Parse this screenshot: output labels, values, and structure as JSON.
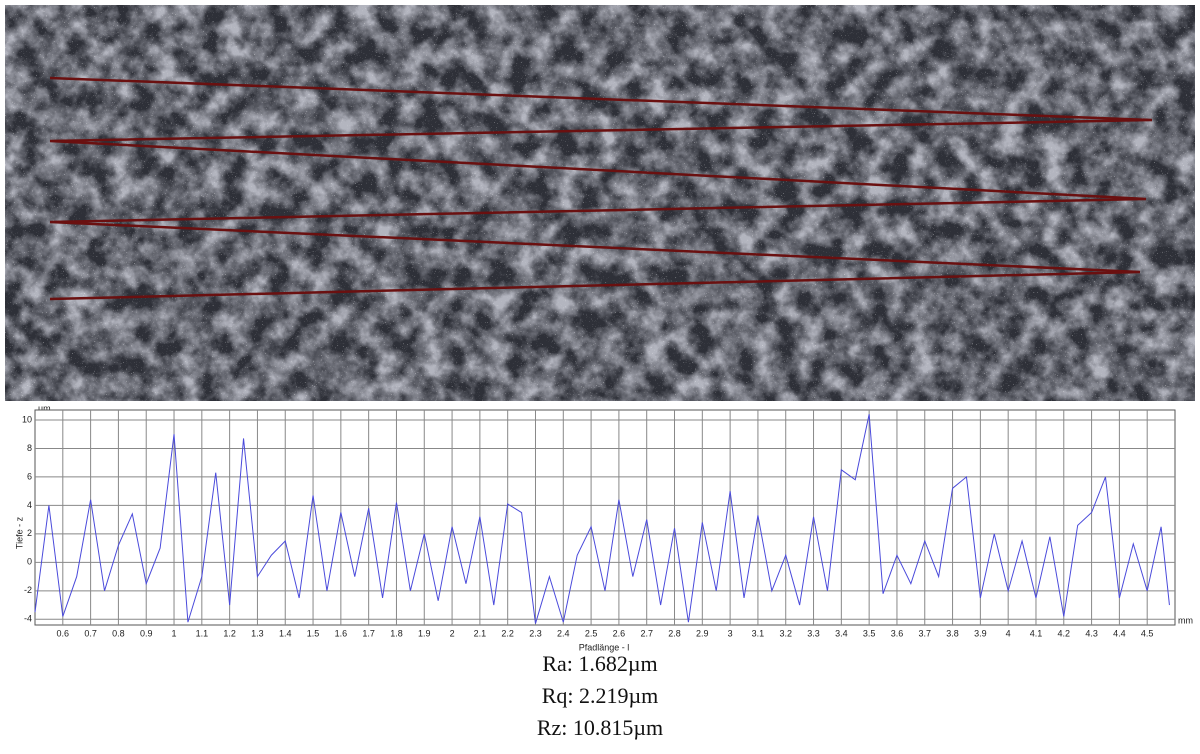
{
  "chart_data": {
    "type": "line",
    "y_unit": "µm",
    "x_unit": "mm",
    "y_label": "Tiefe - z",
    "x_label": "Pfadlänge - l",
    "xlim": [
      0.5,
      4.6
    ],
    "ylim": [
      -4.4,
      10.7
    ],
    "xticks": [
      0.6,
      0.7,
      0.8,
      0.9,
      1,
      1.1,
      1.2,
      1.3,
      1.4,
      1.5,
      1.6,
      1.7,
      1.8,
      1.9,
      2,
      2.1,
      2.2,
      2.3,
      2.4,
      2.5,
      2.6,
      2.7,
      2.8,
      2.9,
      3,
      3.1,
      3.2,
      3.3,
      3.4,
      3.5,
      3.6,
      3.7,
      3.8,
      3.9,
      4,
      4.1,
      4.2,
      4.3,
      4.4,
      4.5
    ],
    "yticks": [
      -4,
      -2,
      0,
      2,
      4,
      6,
      8,
      10
    ],
    "grid": true,
    "x": [
      0.5,
      0.55,
      0.6,
      0.65,
      0.7,
      0.75,
      0.8,
      0.85,
      0.9,
      0.95,
      1,
      1.05,
      1.1,
      1.15,
      1.2,
      1.25,
      1.3,
      1.35,
      1.4,
      1.45,
      1.5,
      1.55,
      1.6,
      1.65,
      1.7,
      1.75,
      1.8,
      1.85,
      1.9,
      1.95,
      2,
      2.05,
      2.1,
      2.15,
      2.2,
      2.25,
      2.3,
      2.35,
      2.4,
      2.45,
      2.5,
      2.55,
      2.6,
      2.65,
      2.7,
      2.75,
      2.8,
      2.85,
      2.9,
      2.95,
      3,
      3.05,
      3.1,
      3.15,
      3.2,
      3.25,
      3.3,
      3.35,
      3.4,
      3.45,
      3.5,
      3.55,
      3.6,
      3.65,
      3.7,
      3.75,
      3.8,
      3.85,
      3.9,
      3.95,
      4,
      4.05,
      4.1,
      4.15,
      4.2,
      4.25,
      4.3,
      4.35,
      4.4,
      4.45,
      4.5,
      4.55,
      4.58
    ],
    "series": [
      {
        "color": "#4a4adb",
        "values": [
          -3.5,
          4,
          -3.8,
          -1,
          4.4,
          -2,
          1.2,
          3.4,
          -1.5,
          1,
          9,
          -4.2,
          -1,
          6.3,
          -3,
          8.7,
          -1,
          0.5,
          1.5,
          -2.5,
          4.7,
          -2,
          3.5,
          -1,
          3.8,
          -2.5,
          4.2,
          -2,
          2,
          -2.7,
          2.5,
          -1.5,
          3.2,
          -3,
          4.1,
          3.5,
          -4.3,
          -1,
          -4.2,
          0.5,
          2.5,
          -2,
          4.4,
          -1,
          3,
          -3,
          2.4,
          -4.2,
          2.8,
          -2,
          5,
          -2.5,
          3.3,
          -2,
          0.5,
          -3,
          3.2,
          -2,
          6.5,
          5.8,
          10.4,
          -2.2,
          0.5,
          -1.5,
          1.5,
          -1,
          5.2,
          6,
          -2.5,
          2,
          -2,
          1.5,
          -2.5,
          1.8,
          -3.8,
          2.6,
          3.5,
          6,
          -2.5,
          1.3,
          -2,
          2.5,
          -3
        ]
      }
    ]
  },
  "captions": [
    "Ra: 1.682µm",
    "Rq: 2.219µm",
    "Rz: 10.815µm"
  ]
}
